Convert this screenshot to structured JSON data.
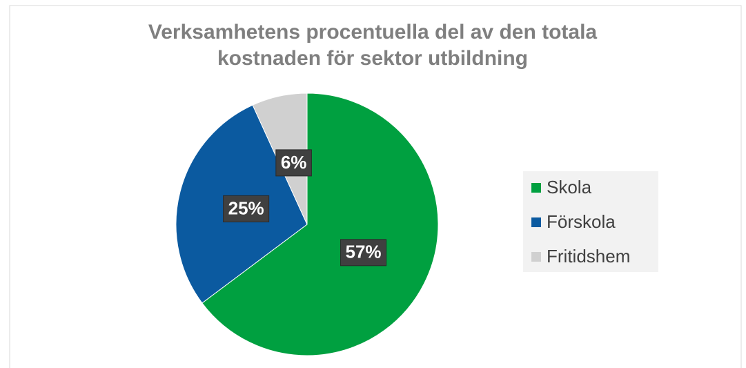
{
  "chart_data": {
    "type": "pie",
    "title": "Verksamhetens procentuella del av den totala kostnaden för sektor utbildning",
    "categories": [
      "Skola",
      "Förskola",
      "Fritidshem"
    ],
    "values": [
      57,
      25,
      6
    ],
    "value_labels": [
      "57%",
      "25%",
      "6%"
    ],
    "colors": [
      "#00a040",
      "#0b5aa0",
      "#d0d0d0"
    ],
    "legend": "right"
  }
}
